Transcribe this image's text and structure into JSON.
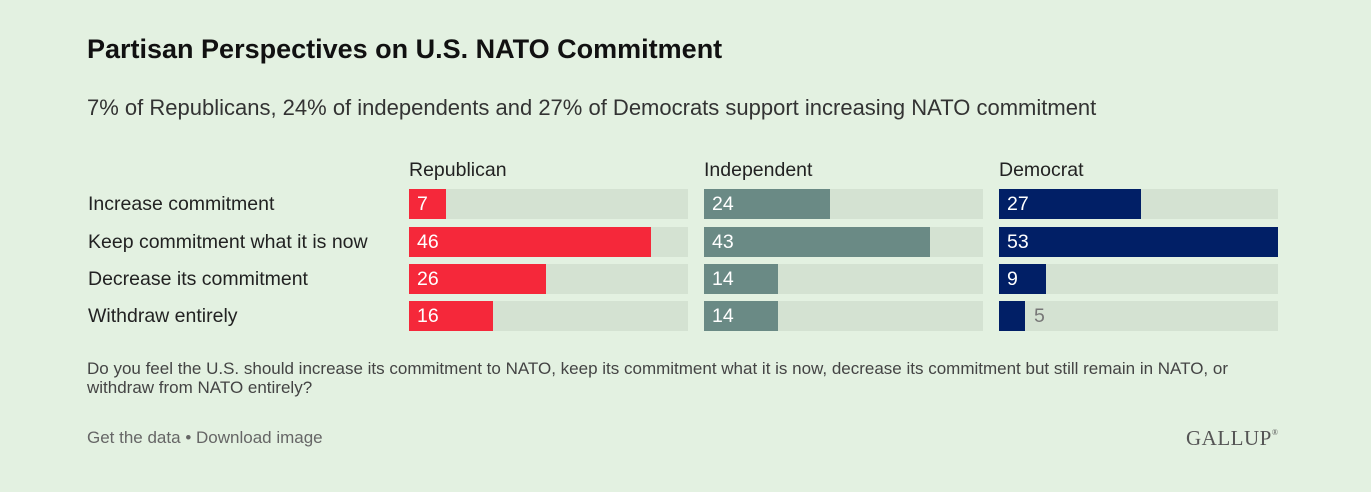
{
  "title": "Partisan Perspectives on U.S. NATO Commitment",
  "subtitle": "7% of Republicans, 24% of independents and 27% of Democrats support increasing NATO commitment",
  "question": "Do you feel the U.S. should increase its commitment to NATO, keep its commitment what it is now, decrease its commitment but still remain in NATO, or withdraw from NATO entirely?",
  "footer": {
    "get_data": "Get the data",
    "separator": "•",
    "download": "Download image"
  },
  "logo": {
    "text": "GALLUP",
    "mark": "®"
  },
  "chart_data": {
    "type": "bar",
    "orientation": "horizontal",
    "categories": [
      "Increase commitment",
      "Keep commitment what it is now",
      "Decrease its commitment",
      "Withdraw entirely"
    ],
    "series": [
      {
        "name": "Republican",
        "color": "#f5283a",
        "values": [
          7,
          46,
          26,
          16
        ]
      },
      {
        "name": "Independent",
        "color": "#6a8a85",
        "values": [
          24,
          43,
          14,
          14
        ]
      },
      {
        "name": "Democrat",
        "color": "#011f66",
        "values": [
          27,
          53,
          9,
          5
        ]
      }
    ],
    "xlim": [
      0,
      53
    ],
    "grid": false,
    "track_color": "#d4e2d2"
  }
}
